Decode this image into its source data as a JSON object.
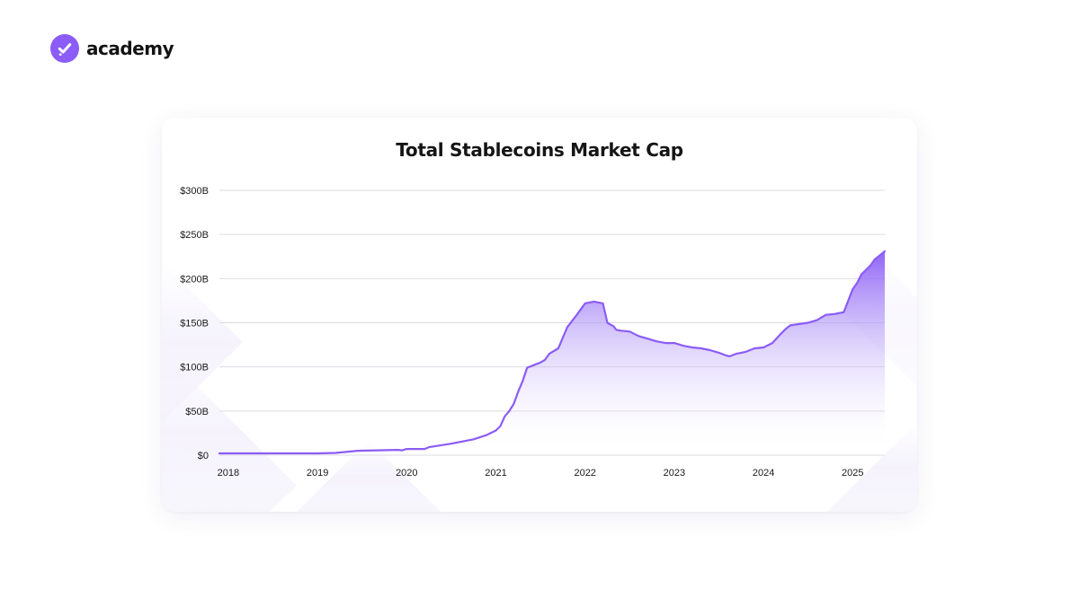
{
  "brand": {
    "name": "academy",
    "icon": "check-badge-icon",
    "color": "#8b5cf6"
  },
  "chart_data": {
    "type": "area",
    "title": "Total Stablecoins Market Cap",
    "xlabel": "",
    "ylabel": "",
    "xlim": [
      2017.9,
      2025.36
    ],
    "ylim": [
      0,
      300
    ],
    "y_ticks": [
      {
        "value": 0,
        "label": "$0"
      },
      {
        "value": 50,
        "label": "$50B"
      },
      {
        "value": 100,
        "label": "$100B"
      },
      {
        "value": 150,
        "label": "$150B"
      },
      {
        "value": 200,
        "label": "$200B"
      },
      {
        "value": 250,
        "label": "$250B"
      },
      {
        "value": 300,
        "label": "$300B"
      }
    ],
    "x_ticks": [
      {
        "value": 2018,
        "label": "2018"
      },
      {
        "value": 2019,
        "label": "2019"
      },
      {
        "value": 2020,
        "label": "2020"
      },
      {
        "value": 2021,
        "label": "2021"
      },
      {
        "value": 2022,
        "label": "2022"
      },
      {
        "value": 2023,
        "label": "2023"
      },
      {
        "value": 2024,
        "label": "2024"
      },
      {
        "value": 2025,
        "label": "2025"
      }
    ],
    "grid": true,
    "line_color": "#8b5cf6",
    "fill_color": "#8b5cf6",
    "series": [
      {
        "x": [
          2017.9,
          2018.5,
          2019.0,
          2019.2,
          2019.45,
          2019.9,
          2019.95,
          2020.0,
          2020.2,
          2020.25,
          2020.5,
          2020.75,
          2020.9,
          2021.0,
          2021.05,
          2021.1,
          2021.15,
          2021.2,
          2021.25,
          2021.3,
          2021.35,
          2021.4,
          2021.45,
          2021.5,
          2021.55,
          2021.6,
          2021.65,
          2021.7,
          2021.8,
          2021.9,
          2021.95,
          2022.0,
          2022.1,
          2022.2,
          2022.25,
          2022.3,
          2022.32,
          2022.35,
          2022.4,
          2022.5,
          2022.6,
          2022.7,
          2022.8,
          2022.9,
          2023.0,
          2023.1,
          2023.2,
          2023.3,
          2023.4,
          2023.5,
          2023.58,
          2023.62,
          2023.7,
          2023.8,
          2023.9,
          2024.0,
          2024.1,
          2024.2,
          2024.25,
          2024.3,
          2024.5,
          2024.6,
          2024.7,
          2024.8,
          2024.9,
          2025.0,
          2025.05,
          2025.1,
          2025.15,
          2025.2,
          2025.25,
          2025.3,
          2025.36
        ],
        "y": [
          2,
          2,
          2,
          2.5,
          5,
          6,
          5.5,
          7,
          7,
          9,
          13,
          18,
          23,
          28,
          33,
          44,
          50,
          58,
          72,
          84,
          99,
          101,
          103,
          105,
          108,
          115,
          118,
          121,
          145,
          158,
          165,
          172,
          174,
          172,
          150,
          147,
          146,
          142,
          141,
          140,
          135,
          132,
          129,
          127,
          127,
          124,
          122,
          121,
          119,
          116,
          113,
          112,
          115,
          117,
          121,
          122,
          127,
          138,
          143,
          147,
          150,
          153,
          159,
          160,
          162,
          188,
          195,
          205,
          210,
          215,
          222,
          226,
          231
        ]
      }
    ]
  }
}
